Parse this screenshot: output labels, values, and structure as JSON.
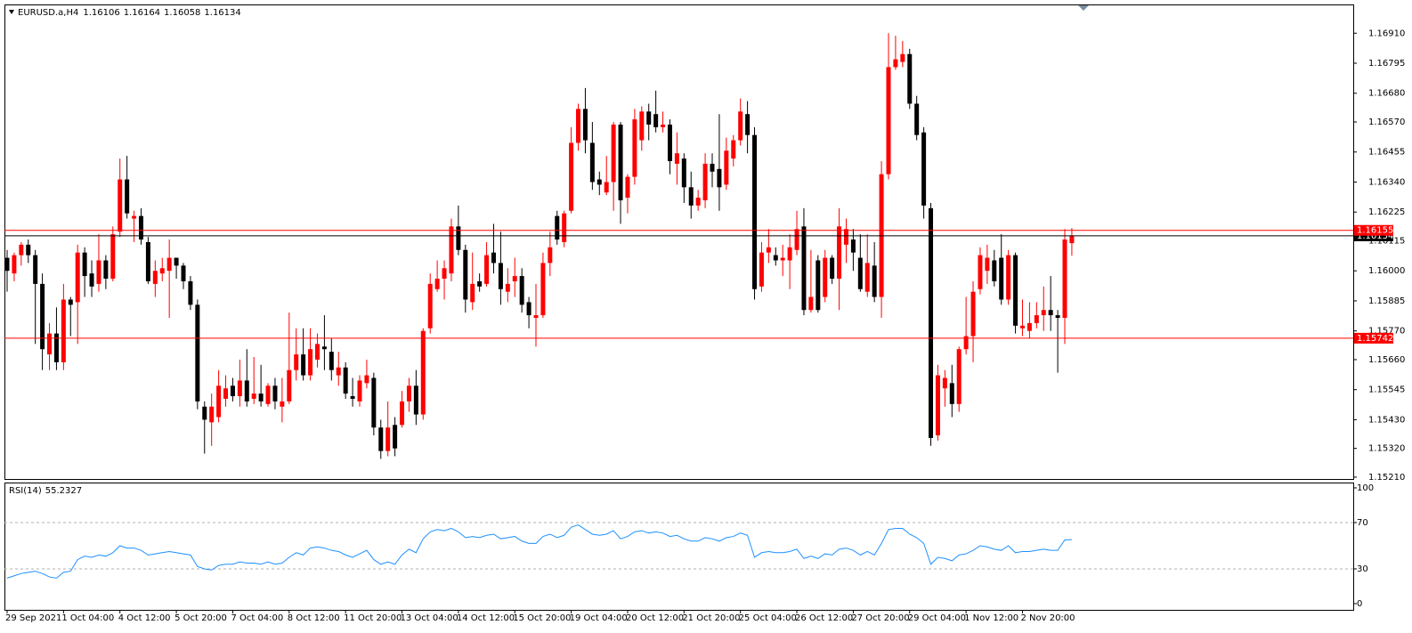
{
  "chart_data": [
    {
      "type": "candlestick",
      "title": "EURUSD.a,H4",
      "up_color": "#ff0000",
      "down_color": "#000000",
      "categories": [
        "29 Sep 2021",
        null,
        null,
        null,
        null,
        null,
        null,
        null,
        "1 Oct 04:00",
        null,
        null,
        null,
        null,
        null,
        null,
        null,
        "4 Oct 12:00",
        null,
        null,
        null,
        null,
        null,
        null,
        null,
        "5 Oct 20:00",
        null,
        null,
        null,
        null,
        null,
        null,
        null,
        "7 Oct 04:00",
        null,
        null,
        null,
        null,
        null,
        null,
        null,
        "8 Oct 12:00",
        null,
        null,
        null,
        null,
        null,
        null,
        null,
        "11 Oct 20:00",
        null,
        null,
        null,
        null,
        null,
        null,
        null,
        "13 Oct 04:00",
        null,
        null,
        null,
        null,
        null,
        null,
        null,
        "14 Oct 12:00",
        null,
        null,
        null,
        null,
        null,
        null,
        null,
        "15 Oct 20:00",
        null,
        null,
        null,
        null,
        null,
        null,
        null,
        "19 Oct 04:00",
        null,
        null,
        null,
        null,
        null,
        null,
        null,
        "20 Oct 12:00",
        null,
        null,
        null,
        null,
        null,
        null,
        null,
        "21 Oct 20:00",
        null,
        null,
        null,
        null,
        null,
        null,
        null,
        "25 Oct 04:00",
        null,
        null,
        null,
        null,
        null,
        null,
        null,
        "26 Oct 12:00",
        null,
        null,
        null,
        null,
        null,
        null,
        null,
        "27 Oct 20:00",
        null,
        null,
        null,
        null,
        null,
        null,
        null,
        "29 Oct 04:00",
        null,
        null,
        null,
        null,
        null,
        null,
        null,
        "1 Nov 12:00",
        null,
        null,
        null,
        null,
        null,
        null,
        null,
        "2 Nov 20:00",
        null,
        null,
        null,
        null,
        null,
        null,
        null
      ],
      "open": [
        1.1605,
        1.1599,
        1.1606,
        1.161,
        1.1606,
        1.1595,
        1.1568,
        1.1576,
        1.1565,
        1.1589,
        1.1588,
        1.1607,
        1.1599,
        1.1595,
        1.1604,
        1.1597,
        1.1615,
        1.1635,
        1.162,
        1.1621,
        1.1611,
        1.1595,
        1.1599,
        1.16,
        1.1605,
        1.1602,
        1.1596,
        1.1587,
        1.1548,
        1.1542,
        1.1544,
        1.1551,
        1.1556,
        1.1552,
        1.1558,
        1.1551,
        1.1553,
        1.1549,
        1.1556,
        1.1548,
        1.155,
        1.1562,
        1.1568,
        1.156,
        1.1566,
        1.1571,
        1.1569,
        1.156,
        1.1563,
        1.1552,
        1.155,
        1.1557,
        1.1559,
        1.154,
        1.1531,
        1.1541,
        1.1541,
        1.155,
        1.1556,
        1.1545,
        1.1578,
        1.1593,
        1.1597,
        1.1599,
        1.1617,
        1.1608,
        1.1588,
        1.1596,
        1.1595,
        1.1607,
        1.1603,
        1.1592,
        1.1596,
        1.1598,
        1.1588,
        1.1582,
        1.1583,
        1.1603,
        1.1621,
        1.1611,
        1.1623,
        1.1649,
        1.1662,
        1.1649,
        1.1635,
        1.163,
        1.1634,
        1.1656,
        1.1628,
        1.1636,
        1.165,
        1.1661,
        1.166,
        1.1655,
        1.1656,
        1.1641,
        1.1643,
        1.1632,
        1.1625,
        1.1627,
        1.1641,
        1.1639,
        1.1633,
        1.1643,
        1.165,
        1.166,
        1.1652,
        1.1594,
        1.1607,
        1.1606,
        1.1604,
        1.1604,
        1.1608,
        1.1617,
        1.1585,
        1.1604,
        1.159,
        1.1605,
        1.1597,
        1.161,
        1.1612,
        1.1605,
        1.1592,
        1.1602,
        1.159,
        1.1637,
        1.1678,
        1.168,
        1.1683,
        1.1664,
        1.1653,
        1.1624,
        1.1537,
        1.1555,
        1.1557,
        1.1549,
        1.157,
        1.1575,
        1.1593,
        1.16,
        1.1604,
        1.1605,
        1.1589,
        1.1606,
        1.1578,
        1.1577,
        1.158,
        1.1583,
        1.1585,
        1.1583,
        1.1582,
        1.16106
      ],
      "high": [
        1.1608,
        1.1607,
        1.1611,
        1.1612,
        1.1608,
        1.1599,
        1.158,
        1.1586,
        1.1595,
        1.159,
        1.161,
        1.1609,
        1.1604,
        1.1614,
        1.1606,
        1.1617,
        1.1643,
        1.1644,
        1.1623,
        1.1624,
        1.1613,
        1.1604,
        1.1605,
        1.1612,
        1.1605,
        1.1603,
        1.1598,
        1.1589,
        1.155,
        1.1553,
        1.1562,
        1.156,
        1.1559,
        1.1566,
        1.157,
        1.1567,
        1.1564,
        1.1557,
        1.1559,
        1.1559,
        1.1584,
        1.1578,
        1.1578,
        1.1578,
        1.1576,
        1.1583,
        1.1574,
        1.1569,
        1.1565,
        1.1559,
        1.156,
        1.1566,
        1.1561,
        1.1543,
        1.155,
        1.1544,
        1.1554,
        1.1559,
        1.1562,
        1.1578,
        1.1599,
        1.1604,
        1.1604,
        1.162,
        1.1625,
        1.161,
        1.1607,
        1.1599,
        1.1611,
        1.1618,
        1.1615,
        1.1601,
        1.1605,
        1.1601,
        1.159,
        1.1595,
        1.1607,
        1.1615,
        1.1623,
        1.1623,
        1.1655,
        1.1664,
        1.167,
        1.1657,
        1.1638,
        1.1644,
        1.1657,
        1.1657,
        1.1637,
        1.1662,
        1.1663,
        1.1664,
        1.1669,
        1.1661,
        1.1658,
        1.1653,
        1.1645,
        1.1638,
        1.1631,
        1.1645,
        1.1645,
        1.166,
        1.1651,
        1.1652,
        1.1666,
        1.1665,
        1.1655,
        1.1611,
        1.1616,
        1.1609,
        1.161,
        1.1614,
        1.1623,
        1.1624,
        1.1608,
        1.1606,
        1.1608,
        1.1606,
        1.1624,
        1.162,
        1.1616,
        1.1614,
        1.1614,
        1.1611,
        1.1642,
        1.1691,
        1.169,
        1.1688,
        1.1685,
        1.1667,
        1.1655,
        1.1626,
        1.1564,
        1.1562,
        1.1564,
        1.1571,
        1.159,
        1.1596,
        1.1609,
        1.161,
        1.1608,
        1.1614,
        1.1608,
        1.1607,
        1.1589,
        1.1588,
        1.1588,
        1.1594,
        1.1598,
        1.1585,
        1.1616,
        1.16164
      ],
      "low": [
        1.1592,
        1.1596,
        1.1602,
        1.1603,
        1.1572,
        1.1562,
        1.1562,
        1.1562,
        1.1562,
        1.1575,
        1.1572,
        1.159,
        1.159,
        1.1592,
        1.1593,
        1.1596,
        1.1613,
        1.162,
        1.1611,
        1.161,
        1.1595,
        1.159,
        1.1596,
        1.1582,
        1.1597,
        1.1593,
        1.1585,
        1.1547,
        1.153,
        1.1533,
        1.1542,
        1.1548,
        1.155,
        1.1548,
        1.1548,
        1.1549,
        1.1548,
        1.1548,
        1.1547,
        1.1542,
        1.1549,
        1.1558,
        1.1558,
        1.1558,
        1.1563,
        1.1562,
        1.1558,
        1.1556,
        1.1551,
        1.1548,
        1.1548,
        1.1555,
        1.1537,
        1.1528,
        1.1529,
        1.1529,
        1.154,
        1.1546,
        1.1541,
        1.1543,
        1.1576,
        1.1592,
        1.1589,
        1.1596,
        1.1606,
        1.1584,
        1.1585,
        1.1592,
        1.1594,
        1.1599,
        1.1587,
        1.1588,
        1.159,
        1.1584,
        1.1578,
        1.1571,
        1.1582,
        1.1598,
        1.161,
        1.1609,
        1.1622,
        1.1646,
        1.1645,
        1.1631,
        1.1629,
        1.1629,
        1.1623,
        1.1618,
        1.1622,
        1.1633,
        1.1646,
        1.165,
        1.1653,
        1.1653,
        1.1637,
        1.1633,
        1.1626,
        1.162,
        1.1623,
        1.1624,
        1.1632,
        1.1623,
        1.1631,
        1.164,
        1.1648,
        1.1645,
        1.1589,
        1.1592,
        1.1603,
        1.1602,
        1.1598,
        1.1593,
        1.1606,
        1.1583,
        1.1584,
        1.1584,
        1.1588,
        1.1595,
        1.1585,
        1.1603,
        1.16,
        1.1592,
        1.159,
        1.1588,
        1.1582,
        1.1635,
        1.1677,
        1.1678,
        1.1662,
        1.165,
        1.162,
        1.1533,
        1.1535,
        1.1548,
        1.1544,
        1.1546,
        1.1568,
        1.1565,
        1.1591,
        1.1595,
        1.1594,
        1.1587,
        1.1587,
        1.1576,
        1.1575,
        1.1574,
        1.1578,
        1.1577,
        1.1577,
        1.1561,
        1.1572,
        1.16058
      ],
      "close": [
        1.16,
        1.1606,
        1.161,
        1.1606,
        1.1595,
        1.157,
        1.1576,
        1.1565,
        1.1589,
        1.1587,
        1.1607,
        1.1598,
        1.1594,
        1.1604,
        1.1597,
        1.1614,
        1.1635,
        1.1622,
        1.1621,
        1.1612,
        1.1596,
        1.16,
        1.1601,
        1.1605,
        1.1602,
        1.1596,
        1.1587,
        1.155,
        1.1543,
        1.1548,
        1.1556,
        1.1555,
        1.1552,
        1.1558,
        1.155,
        1.1553,
        1.155,
        1.1556,
        1.155,
        1.155,
        1.1562,
        1.1568,
        1.156,
        1.157,
        1.1572,
        1.157,
        1.1562,
        1.1563,
        1.1553,
        1.1551,
        1.1558,
        1.156,
        1.154,
        1.1531,
        1.154,
        1.1532,
        1.155,
        1.1556,
        1.1545,
        1.1577,
        1.1595,
        1.1597,
        1.1601,
        1.1617,
        1.1608,
        1.1589,
        1.1595,
        1.1594,
        1.1606,
        1.1603,
        1.1593,
        1.1595,
        1.1598,
        1.1587,
        1.1583,
        1.1583,
        1.1603,
        1.1609,
        1.1612,
        1.1622,
        1.1649,
        1.1662,
        1.165,
        1.1634,
        1.1633,
        1.1634,
        1.1656,
        1.1627,
        1.1636,
        1.1658,
        1.1661,
        1.1656,
        1.1655,
        1.1656,
        1.1642,
        1.1645,
        1.1632,
        1.1625,
        1.1628,
        1.1641,
        1.1638,
        1.1632,
        1.1646,
        1.165,
        1.1661,
        1.1652,
        1.1593,
        1.1607,
        1.1609,
        1.1604,
        1.1605,
        1.1609,
        1.1616,
        1.1585,
        1.159,
        1.1585,
        1.1605,
        1.1597,
        1.1617,
        1.1616,
        1.1607,
        1.1593,
        1.1603,
        1.159,
        1.1637,
        1.1678,
        1.1681,
        1.1683,
        1.1664,
        1.1652,
        1.1625,
        1.1536,
        1.156,
        1.1559,
        1.1549,
        1.157,
        1.1575,
        1.1592,
        1.1606,
        1.1605,
        1.1596,
        1.1589,
        1.1606,
        1.1579,
        1.1579,
        1.158,
        1.1583,
        1.1585,
        1.1583,
        1.1582,
        1.1612,
        1.16134
      ],
      "ylim": [
        1.15203,
        1.1702
      ],
      "yticks": [
        {
          "value": 1.1691,
          "label": "1.16910"
        },
        1.16795,
        {
          "value": 1.1668,
          "label": "1.16680"
        },
        {
          "value": 1.1657,
          "label": "1.16570"
        },
        1.16455,
        {
          "value": 1.1634,
          "label": "1.16340"
        },
        1.16225,
        1.16115,
        {
          "value": 1.16,
          "label": "1.16000"
        },
        1.15885,
        {
          "value": 1.1577,
          "label": "1.15770"
        },
        {
          "value": 1.1566,
          "label": "1.15660"
        },
        1.15545,
        {
          "value": 1.1543,
          "label": "1.15430"
        },
        {
          "value": 1.1532,
          "label": "1.15320"
        },
        {
          "value": 1.1521,
          "label": "1.15210"
        }
      ],
      "levels": [
        {
          "value": 1.16155,
          "color": "#ff0000"
        },
        {
          "value": 1.15742,
          "color": "#ff0000"
        }
      ]
    },
    {
      "type": "line",
      "title": "RSI(14)",
      "color": "#1e90ff",
      "values": [
        22,
        24,
        26,
        27,
        28,
        26,
        23,
        22,
        27,
        28,
        38,
        41,
        40,
        42,
        41,
        44,
        50,
        48,
        48,
        46,
        42,
        43,
        44,
        45,
        44,
        43,
        42,
        32,
        30,
        29,
        33,
        34,
        34,
        36,
        35,
        35,
        34,
        36,
        34,
        35,
        40,
        44,
        42,
        48,
        49,
        48,
        46,
        45,
        42,
        40,
        43,
        46,
        38,
        34,
        36,
        34,
        42,
        47,
        44,
        56,
        62,
        64,
        63,
        65,
        62,
        57,
        58,
        57,
        59,
        60,
        56,
        57,
        58,
        54,
        52,
        52,
        58,
        60,
        57,
        59,
        66,
        68,
        64,
        60,
        59,
        60,
        63,
        56,
        58,
        62,
        63,
        61,
        62,
        61,
        58,
        59,
        56,
        54,
        54,
        57,
        56,
        54,
        57,
        58,
        61,
        59,
        40,
        44,
        45,
        44,
        44,
        45,
        47,
        39,
        41,
        39,
        43,
        42,
        47,
        48,
        46,
        42,
        45,
        42,
        52,
        64,
        65,
        65,
        60,
        57,
        52,
        34,
        40,
        39,
        37,
        42,
        43,
        46,
        50,
        49,
        47,
        46,
        50,
        44,
        45,
        45,
        46,
        47,
        46,
        46,
        55,
        55.2327
      ],
      "ylim": [
        -5.4,
        104.6
      ],
      "yticks": [
        100,
        70,
        30,
        0
      ],
      "levels": [
        70,
        30
      ]
    }
  ]
}
